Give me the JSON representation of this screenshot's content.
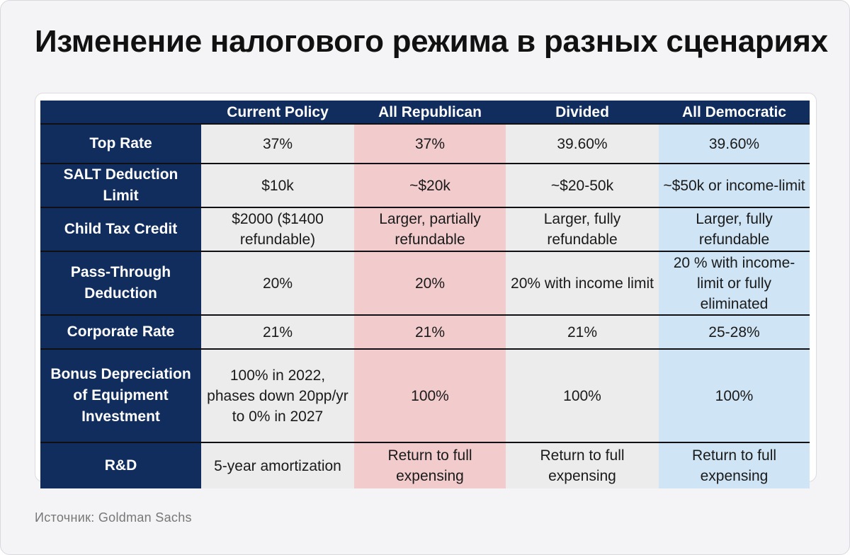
{
  "title": "Изменение налогового режима в разных сценариях",
  "source": "Источник: Goldman Sachs",
  "colors": {
    "header_navy": "#102d5e",
    "republican_pink": "#f2cbcd",
    "democratic_blue": "#cfe5f5",
    "neutral_gray": "#ececec"
  },
  "table": {
    "columns": [
      "",
      "Current Policy",
      "All Republican",
      "Divided",
      "All Democratic"
    ],
    "rows": [
      {
        "label": "Top Rate",
        "values": [
          "37%",
          "37%",
          "39.60%",
          "39.60%"
        ]
      },
      {
        "label": "SALT Deduction Limit",
        "values": [
          "$10k",
          "~$20k",
          "~$20-50k",
          "~$50k or income-limit"
        ]
      },
      {
        "label": "Child Tax Credit",
        "values": [
          "$2000 ($1400 refundable)",
          "Larger, partially refundable",
          "Larger, fully refundable",
          "Larger, fully refundable"
        ]
      },
      {
        "label": "Pass-Through Deduction",
        "values": [
          "20%",
          "20%",
          "20% with income limit",
          "20 % with income-limit or fully eliminated"
        ]
      },
      {
        "label": "Corporate Rate",
        "values": [
          "21%",
          "21%",
          "21%",
          "25-28%"
        ]
      },
      {
        "label": "Bonus Depreciation of Equipment Investment",
        "values": [
          "100% in 2022, phases down 20pp/yr to 0% in 2027",
          "100%",
          "100%",
          "100%"
        ]
      },
      {
        "label": "R&D",
        "values": [
          "5-year amortization",
          "Return to full expensing",
          "Return to full expensing",
          "Return to full expensing"
        ]
      }
    ]
  }
}
